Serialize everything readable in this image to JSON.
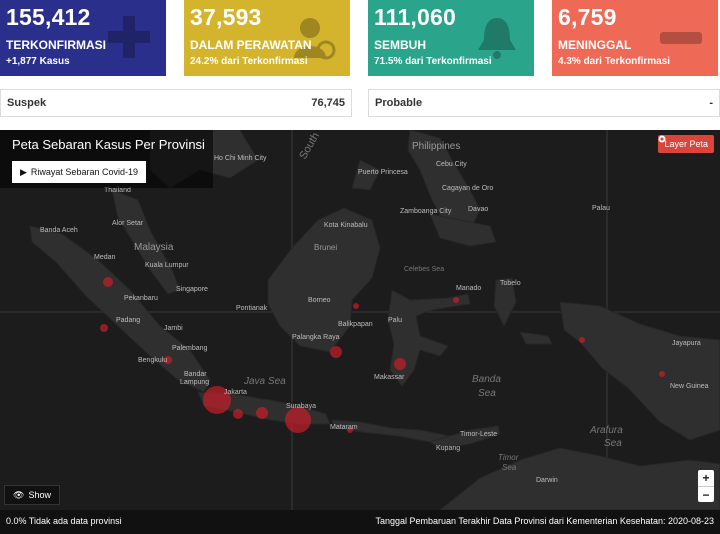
{
  "cards": [
    {
      "number": "155,412",
      "label": "TERKONFIRMASI",
      "sub": "+1,877 Kasus",
      "icon": "plus-icon",
      "color": "#2b2f8c"
    },
    {
      "number": "37,593",
      "label": "DALAM PERAWATAN",
      "sub": "24.2% dari Terkonfirmasi",
      "icon": "patient-icon",
      "color": "#d4b42c"
    },
    {
      "number": "111,060",
      "label": "SEMBUH",
      "sub": "71.5% dari Terkonfirmasi",
      "icon": "bell-icon",
      "color": "#2aa58c"
    },
    {
      "number": "6,759",
      "label": "MENINGGAL",
      "sub": "4.3% dari Terkonfirmasi",
      "icon": "minus-icon",
      "color": "#ef6a56"
    }
  ],
  "stats": [
    {
      "label": "Suspek",
      "value": "76,745"
    },
    {
      "label": "Probable",
      "value": "-"
    }
  ],
  "map": {
    "title": "Peta Sebaran Kasus Per Provinsi",
    "history_button": "Riwayat Sebaran Covid-19",
    "layer_button": "Layer Peta",
    "show_button": "Show",
    "zoom_in": "+",
    "zoom_out": "−",
    "labels": {
      "hcm": "Ho Chi Minh City",
      "south": "South",
      "philippines": "Philippines",
      "thailand": "Thailand",
      "puerto": "Puerto Princesa",
      "cebu": "Cebu City",
      "cagayan": "Cagayan de Oro",
      "zamboanga": "Zamboanga City",
      "davao": "Davao",
      "palau": "Palau",
      "alor": "Alor Setar",
      "kota_kinabalu": "Kota Kinabalu",
      "banda_aceh": "Banda Aceh",
      "malaysia": "Malaysia",
      "brunei": "Brunei",
      "medan": "Medan",
      "kuala_lumpur": "Kuala Lumpur",
      "celebes": "Celebes Sea",
      "singapore": "Singapore",
      "manado": "Manado",
      "tobelo": "Tobelo",
      "pekanbaru": "Pekanbaru",
      "borneo": "Borneo",
      "pontianak": "Pontianak",
      "balikpapan": "Balikpapan",
      "palu": "Palu",
      "padang": "Padang",
      "jambi": "Jambi",
      "palangka": "Palangka Raya",
      "jayapura": "Jayapura",
      "palembang": "Palembang",
      "bengkulu": "Bengkulu",
      "makassar": "Makassar",
      "banda_sea1": "Banda",
      "banda_sea2": "Sea",
      "bandar": "Bandar",
      "lampung": "Lampung",
      "java_sea": "Java Sea",
      "new_guinea": "New Guinea",
      "jakarta": "Jakarta",
      "surabaya": "Surabaya",
      "arafura1": "Arafura",
      "arafura2": "Sea",
      "mataram": "Mataram",
      "timor_leste": "Timor-Leste",
      "kupang": "Kupang",
      "timor1": "Timor",
      "timor2": "Sea",
      "darwin": "Darwin"
    }
  },
  "footer": {
    "left": "0.0% Tidak ada data provinsi",
    "right": "Tanggal Pembaruan Terakhir Data Provinsi dari Kementerian Kesehatan: 2020-08-23"
  }
}
